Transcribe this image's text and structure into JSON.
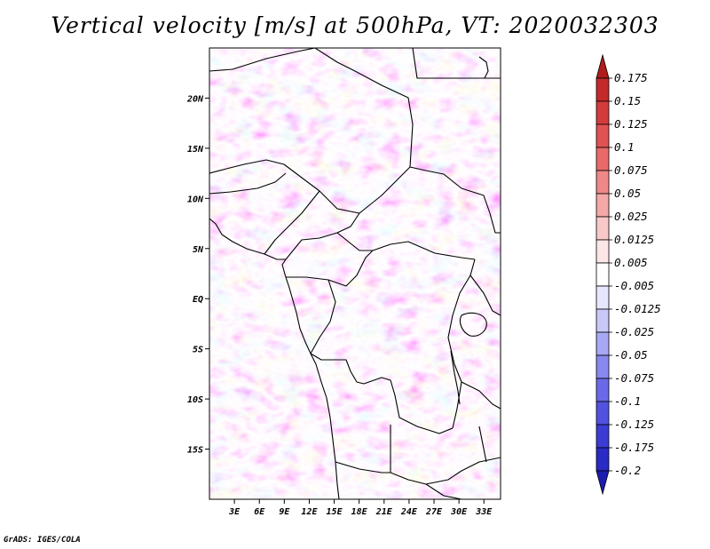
{
  "title": "Vertical velocity [m/s] at 500hPa, VT: 2020032303",
  "footer": "GrADS: IGES/COLA",
  "chart_data": {
    "type": "heatmap",
    "variable": "Vertical velocity",
    "units": "m/s",
    "level": "500hPa",
    "valid_time": "2020032303",
    "lon_range": [
      0,
      35
    ],
    "lat_range": [
      -20,
      25
    ],
    "x_ticks": [
      "3E",
      "6E",
      "9E",
      "12E",
      "15E",
      "18E",
      "21E",
      "24E",
      "27E",
      "30E",
      "33E"
    ],
    "x_tick_values": [
      3,
      6,
      9,
      12,
      15,
      18,
      21,
      24,
      27,
      30,
      33
    ],
    "y_ticks": [
      "20N",
      "15N",
      "10N",
      "5N",
      "EQ",
      "5S",
      "10S",
      "15S"
    ],
    "y_tick_values": [
      20,
      15,
      10,
      5,
      0,
      -5,
      -10,
      -15
    ],
    "colorbar": {
      "levels": [
        "0.175",
        "0.15",
        "0.125",
        "0.1",
        "0.075",
        "0.05",
        "0.025",
        "0.0125",
        "0.005",
        "-0.005",
        "-0.0125",
        "-0.025",
        "-0.05",
        "-0.075",
        "-0.1",
        "-0.125",
        "-0.175",
        "-0.2"
      ],
      "colors": [
        "#b01c1c",
        "#c42a2a",
        "#d43c3c",
        "#e15252",
        "#e86a6a",
        "#ef8888",
        "#f4a8a8",
        "#f9c8c8",
        "#fde6e6",
        "#ffffff",
        "#e6e6fd",
        "#c8c8f9",
        "#a8a8f4",
        "#8888ef",
        "#6a6ae8",
        "#5252e1",
        "#3c3cd4",
        "#2a2ac4",
        "#1c1cb0"
      ]
    }
  }
}
